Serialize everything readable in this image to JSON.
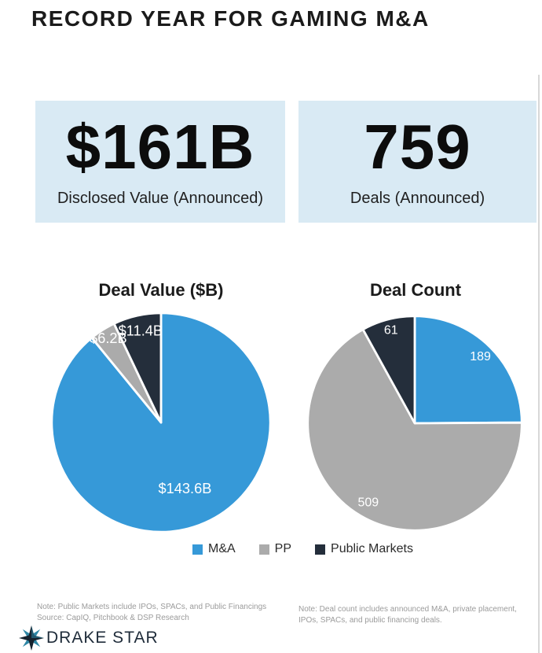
{
  "page": {
    "title": "RECORD YEAR FOR GAMING M&A"
  },
  "stats": [
    {
      "value": "$161B",
      "label": "Disclosed Value (Announced)"
    },
    {
      "value": "759",
      "label": "Deals (Announced)"
    }
  ],
  "colors": {
    "ma_blue": "#3699D8",
    "pp_gray": "#ABABAB",
    "public_markets_navy": "#242E3B",
    "stat_box_bg": "#D9EAF4",
    "note_gray": "#9B9B9B"
  },
  "legend": [
    {
      "label": "M&A",
      "color": "#3699D8"
    },
    {
      "label": "PP",
      "color": "#ABABAB"
    },
    {
      "label": "Public Markets",
      "color": "#242E3B"
    }
  ],
  "chart_data": [
    {
      "type": "pie",
      "title": "Deal Value ($B)",
      "total_label": "$161B",
      "start_angle_deg": 0,
      "direction": "clockwise",
      "label_font_px": 18,
      "legend_position": "bottom",
      "slices": [
        {
          "name": "M&A",
          "value": 143.6,
          "label": "$143.6B",
          "color": "#3699D8",
          "label_r": 0.65
        },
        {
          "name": "PP",
          "value": 6.2,
          "label": "$6.2B",
          "color": "#ABABAB",
          "label_r": 0.9
        },
        {
          "name": "Public Markets",
          "value": 11.4,
          "label": "$11.4B",
          "color": "#242E3B",
          "label_r": 0.85
        }
      ]
    },
    {
      "type": "pie",
      "title": "Deal Count",
      "total_label": "759",
      "start_angle_deg": 0,
      "direction": "clockwise",
      "label_font_px": 16,
      "legend_position": "bottom",
      "slices": [
        {
          "name": "M&A",
          "value": 189,
          "label": "189",
          "color": "#3699D8",
          "label_r": 0.87
        },
        {
          "name": "PP",
          "value": 509,
          "label": "509",
          "color": "#ABABAB",
          "label_r": 0.86
        },
        {
          "name": "Public Markets",
          "value": 61,
          "label": "61",
          "color": "#242E3B",
          "label_r": 0.89
        }
      ]
    }
  ],
  "notes": {
    "left_line1": "Note: Public Markets include IPOs, SPACs, and Public Financings",
    "left_line2": "Source: CapIQ, Pitchbook & DSP Research",
    "right": "Note: Deal count includes announced M&A, private placement, IPOs, SPACs, and public financing deals."
  },
  "logo": {
    "text": "DRAKE STAR"
  }
}
